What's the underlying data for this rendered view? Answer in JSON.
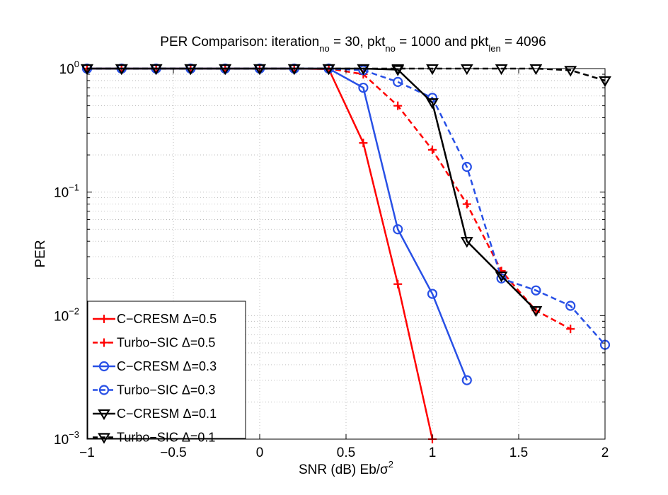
{
  "chart_data": {
    "type": "line",
    "title": {
      "prefix": "PER Comparison: iteration",
      "sub1": "no",
      "mid1": " = 30, pkt",
      "sub2": "no",
      "mid2": " = 1000 and pkt",
      "sub3": "len",
      "suffix": " = 4096"
    },
    "xlabel": {
      "main": "SNR (dB) Eb/σ",
      "sup": "2"
    },
    "ylabel": "PER",
    "xlim": [
      -1,
      2
    ],
    "ylim": [
      0.001,
      1
    ],
    "yscale": "log",
    "grid": true,
    "legend_position": "bottom-left",
    "x_ticks": [
      {
        "value": -1,
        "label": "−1"
      },
      {
        "value": -0.5,
        "label": "−0.5"
      },
      {
        "value": 0,
        "label": "0"
      },
      {
        "value": 0.5,
        "label": "0.5"
      },
      {
        "value": 1,
        "label": "1"
      },
      {
        "value": 1.5,
        "label": "1.5"
      },
      {
        "value": 2,
        "label": "2"
      }
    ],
    "y_ticks": [
      {
        "value": 1,
        "base": "10",
        "exp": "0"
      },
      {
        "value": 0.1,
        "base": "10",
        "exp": "−1"
      },
      {
        "value": 0.01,
        "base": "10",
        "exp": "−2"
      },
      {
        "value": 0.001,
        "base": "10",
        "exp": "−3"
      }
    ],
    "series": [
      {
        "name": "C−CRESM Δ=0.5",
        "color": "#ff0000",
        "dash": "solid",
        "marker": "plus",
        "x": [
          -1,
          -0.8,
          -0.6,
          -0.4,
          -0.2,
          0,
          0.2,
          0.4,
          0.6,
          0.8,
          1.0
        ],
        "y": [
          1,
          1,
          1,
          1,
          1,
          1,
          1,
          0.99,
          0.25,
          0.018,
          0.001
        ]
      },
      {
        "name": "Turbo−SIC Δ=0.5",
        "color": "#ff0000",
        "dash": "dashed",
        "marker": "plus",
        "x": [
          -1,
          -0.8,
          -0.6,
          -0.4,
          -0.2,
          0,
          0.2,
          0.4,
          0.6,
          0.8,
          1.0,
          1.2,
          1.4,
          1.6,
          1.8
        ],
        "y": [
          1,
          1,
          1,
          1,
          1,
          1,
          1,
          1,
          0.9,
          0.5,
          0.22,
          0.08,
          0.023,
          0.011,
          0.0078
        ]
      },
      {
        "name": "C−CRESM Δ=0.3",
        "color": "#2850e6",
        "dash": "solid",
        "marker": "circle",
        "x": [
          -1,
          -0.8,
          -0.6,
          -0.4,
          -0.2,
          0,
          0.2,
          0.4,
          0.6,
          0.8,
          1.0,
          1.2
        ],
        "y": [
          1,
          1,
          1,
          1,
          1,
          1,
          1,
          1,
          0.7,
          0.05,
          0.015,
          0.003
        ]
      },
      {
        "name": "Turbo−SIC Δ=0.3",
        "color": "#2850e6",
        "dash": "dashed",
        "marker": "circle",
        "x": [
          -1,
          -0.8,
          -0.6,
          -0.4,
          -0.2,
          0,
          0.2,
          0.4,
          0.6,
          0.8,
          1.0,
          1.2,
          1.4,
          1.6,
          1.8,
          2.0
        ],
        "y": [
          1,
          1,
          1,
          1,
          1,
          1,
          1,
          1,
          0.97,
          0.78,
          0.58,
          0.16,
          0.02,
          0.016,
          0.012,
          0.0058
        ]
      },
      {
        "name": "C−CRESM Δ=0.1",
        "color": "#000000",
        "dash": "solid",
        "marker": "triangle-down",
        "x": [
          -1,
          -0.8,
          -0.6,
          -0.4,
          -0.2,
          0,
          0.2,
          0.4,
          0.6,
          0.8,
          1.0,
          1.2,
          1.4,
          1.6
        ],
        "y": [
          1,
          1,
          1,
          1,
          1,
          1,
          1,
          1,
          1,
          0.98,
          0.53,
          0.04,
          0.021,
          0.011
        ]
      },
      {
        "name": "Turbo−SIC Δ=0.1",
        "color": "#000000",
        "dash": "dashed",
        "marker": "triangle-down",
        "x": [
          -1,
          -0.8,
          -0.6,
          -0.4,
          -0.2,
          0,
          0.2,
          0.4,
          0.6,
          0.8,
          1.0,
          1.2,
          1.4,
          1.6,
          1.8,
          2.0
        ],
        "y": [
          1,
          1,
          1,
          1,
          1,
          1,
          1,
          1,
          1,
          1,
          1,
          1,
          1,
          1,
          0.97,
          0.8
        ]
      }
    ]
  }
}
